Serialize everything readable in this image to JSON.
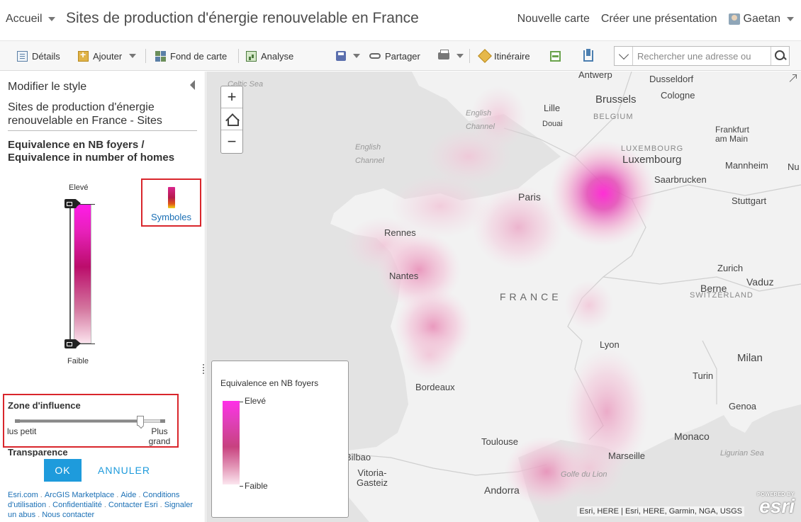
{
  "header": {
    "home_label": "Accueil",
    "title": "Sites de production d'énergie renouvelable en France",
    "new_map": "Nouvelle carte",
    "create_presentation": "Créer une présentation",
    "user_name": "Gaetan"
  },
  "toolbar": {
    "details": "Détails",
    "add": "Ajouter",
    "basemap": "Fond de carte",
    "analysis": "Analyse",
    "share": "Partager",
    "directions": "Itinéraire",
    "search_placeholder": "Rechercher une adresse ou"
  },
  "panel": {
    "title": "Modifier le style",
    "layer_name": "Sites de production d'énergie renouvelable en France - Sites",
    "field_name": "Equivalence en NB foyers / Equivalence in number of homes",
    "ramp_high": "Elevé",
    "ramp_low": "Faible",
    "symbols_label": "Symboles",
    "zone_title": "Zone d'influence",
    "zone_min": "lus petit",
    "zone_max": "Plus grand",
    "zone_value": 0.84,
    "transparency_label": "Transparence",
    "ok": "OK",
    "cancel": "ANNULER"
  },
  "footer": {
    "links": [
      "Esri.com",
      "ArcGIS Marketplace",
      "Aide",
      "Conditions d'utilisation",
      "Confidentialité",
      "Contacter Esri",
      "Signaler un abus",
      "Nous contacter"
    ]
  },
  "map": {
    "zoom_in": "+",
    "zoom_out": "−",
    "places": {
      "celtic_sea": "Celtic Sea",
      "english_channel_1": "English Channel",
      "english_channel_2": "English Channel",
      "antwerp": "Antwerp",
      "dusseldorf": "Dusseldorf",
      "brussels": "Brussels",
      "cologne": "Cologne",
      "lille": "Lille",
      "douai": "Douai",
      "belgium": "BELGIUM",
      "frankfurt": "Frankfurt am Main",
      "luxembourg_country": "LUXEMBOURG",
      "luxembourg": "Luxembourg",
      "mannheim": "Mannheim",
      "nu": "Nu",
      "saarbrucken": "Saarbrucken",
      "paris": "Paris",
      "stuttgart": "Stuttgart",
      "rennes": "Rennes",
      "nantes": "Nantes",
      "zurich": "Zurich",
      "france": "FRANCE",
      "berne": "Berne",
      "vaduz": "Vaduz",
      "switzerland": "SWITZERLAND",
      "lyon": "Lyon",
      "milan": "Milan",
      "bordeaux": "Bordeaux",
      "turin": "Turin",
      "genoa": "Genoa",
      "monaco": "Monaco",
      "toulouse": "Toulouse",
      "marseille": "Marseille",
      "ligurian_sea": "Ligurian Sea",
      "golfe_lion": "Golfe du Lion",
      "bilbao": "Bilbao",
      "vitoria": "Vitoria-Gasteiz",
      "andorra": "Andorra"
    },
    "legend": {
      "title": "Equivalence en NB foyers",
      "high": "Elevé",
      "low": "Faible"
    },
    "attribution": "Esri, HERE | Esri, HERE, Garmin, NGA, USGS",
    "esri_powered": "POWERED BY",
    "esri_word": "esri"
  }
}
